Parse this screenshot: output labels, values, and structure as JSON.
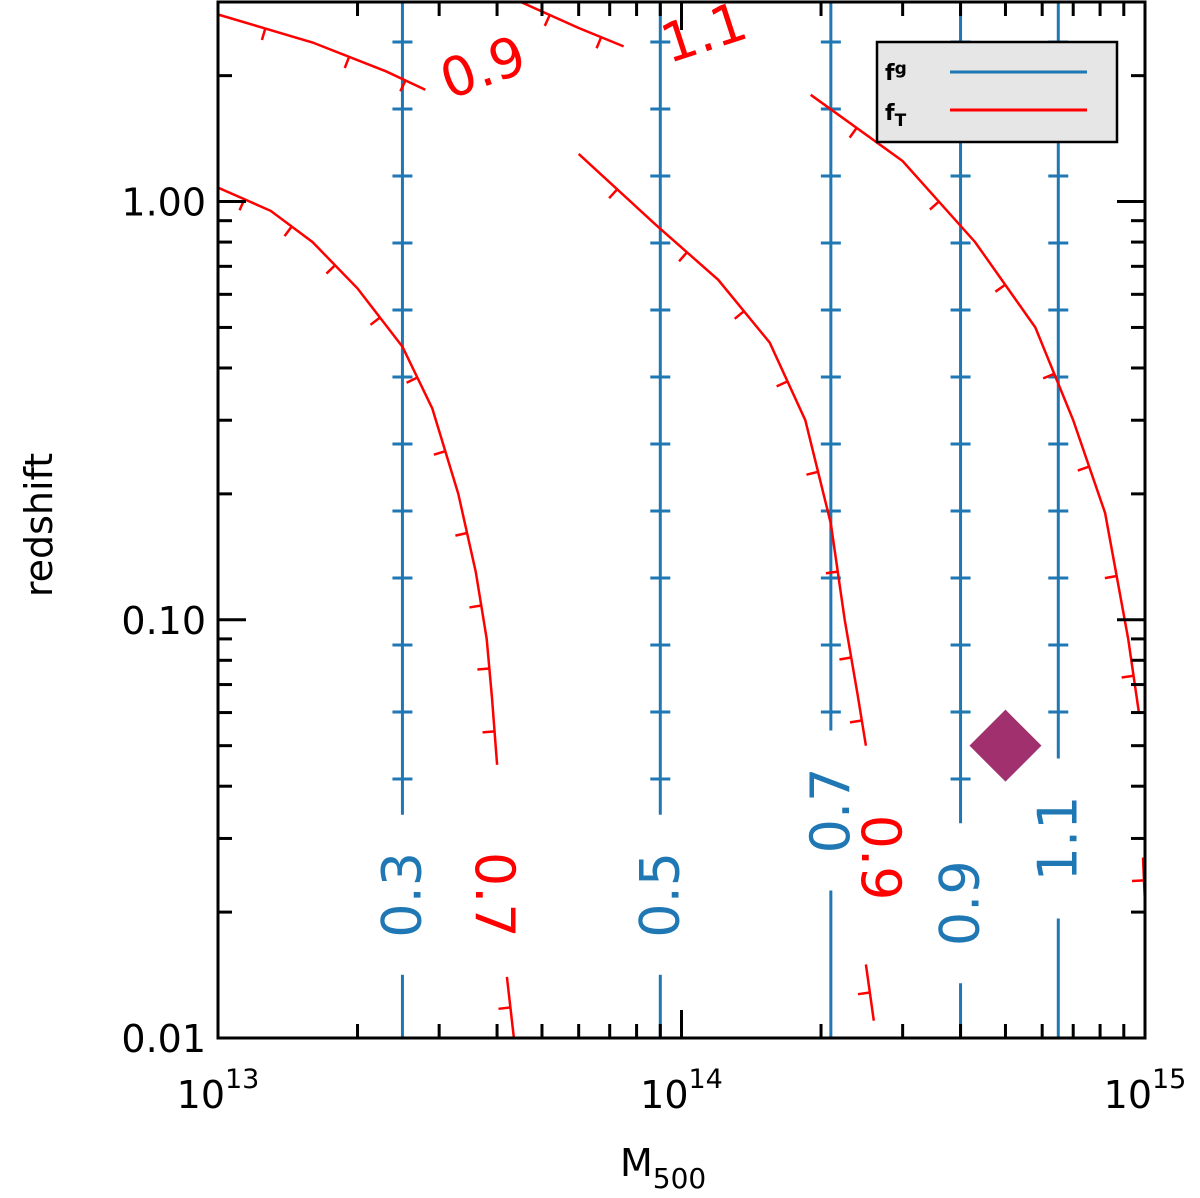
{
  "colors": {
    "fg": "#1f77b4",
    "fT": "#ff0000",
    "marker": "#a0306e",
    "legend_bg": "#e6e6e6"
  },
  "chart_data": {
    "type": "contour",
    "xlabel": "M",
    "xlabel_sub": "500",
    "ylabel": "redshift",
    "x_scale": "log",
    "y_scale": "log",
    "xlim": [
      10000000000000.0,
      1000000000000000.0
    ],
    "ylim": [
      0.01,
      3.0
    ],
    "x_ticks": [
      {
        "value": 10000000000000.0,
        "base": "10",
        "exp": "13"
      },
      {
        "value": 100000000000000.0,
        "base": "10",
        "exp": "14"
      },
      {
        "value": 1000000000000000.0,
        "base": "10",
        "exp": "15"
      }
    ],
    "y_ticks": [
      {
        "value": 0.01,
        "label": "0.01"
      },
      {
        "value": 0.1,
        "label": "0.10"
      },
      {
        "value": 1.0,
        "label": "1.00"
      }
    ],
    "legend": {
      "position": "top-right",
      "entries": [
        {
          "name": "f",
          "sub": "g",
          "color": "#1f77b4"
        },
        {
          "name": "f",
          "sub": "T",
          "color": "#ff0000"
        }
      ]
    },
    "fg_contours": [
      {
        "level": "0.3",
        "mass": 25000000000000.0,
        "label_z": 0.022
      },
      {
        "level": "0.5",
        "mass": 90000000000000.0,
        "label_z": 0.022
      },
      {
        "level": "0.7",
        "mass": 210000000000000.0,
        "label_z": 0.035
      },
      {
        "level": "0.9",
        "mass": 400000000000000.0,
        "label_z": 0.021
      },
      {
        "level": "1.1",
        "mass": 650000000000000.0,
        "label_z": 0.03
      }
    ],
    "fT_contours": [
      {
        "level": "0.7",
        "points": [
          [
            10000000000000.0,
            1.08
          ],
          [
            13000000000000.0,
            0.95
          ],
          [
            16000000000000.0,
            0.8
          ],
          [
            20000000000000.0,
            0.62
          ],
          [
            25000000000000.0,
            0.45
          ],
          [
            29000000000000.0,
            0.32
          ],
          [
            33000000000000.0,
            0.2
          ],
          [
            36000000000000.0,
            0.13
          ],
          [
            38000000000000.0,
            0.09
          ],
          [
            39000000000000.0,
            0.065
          ],
          [
            40000000000000.0,
            0.045
          ]
        ],
        "tail": [
          [
            42000000000000.0,
            0.014
          ],
          [
            43500000000000.0,
            0.01
          ]
        ],
        "label_mass": 36000000000000.0,
        "label_z": 0.022
      },
      {
        "level": "0.9",
        "points": [
          [
            10000000000000.0,
            2.8
          ],
          [
            16000000000000.0,
            2.4
          ],
          [
            23000000000000.0,
            2.05
          ],
          [
            28000000000000.0,
            1.85
          ]
        ],
        "points2": [
          [
            60000000000000.0,
            1.3
          ],
          [
            88000000000000.0,
            0.88
          ],
          [
            120000000000000.0,
            0.65
          ],
          [
            155000000000000.0,
            0.46
          ],
          [
            185000000000000.0,
            0.3
          ],
          [
            210000000000000.0,
            0.17
          ],
          [
            225000000000000.0,
            0.1
          ],
          [
            240000000000000.0,
            0.066
          ],
          [
            250000000000000.0,
            0.05
          ]
        ],
        "tail": [
          [
            250000000000000.0,
            0.015
          ],
          [
            260000000000000.0,
            0.011
          ]
        ],
        "label_mass": 55000000000000.0,
        "label_z": 2.0
      },
      {
        "level": "1.1",
        "points": [
          [
            45000000000000.0,
            3.0
          ],
          [
            60000000000000.0,
            2.6
          ],
          [
            75000000000000.0,
            2.35
          ]
        ],
        "points2": [
          [
            190000000000000.0,
            1.8
          ],
          [
            300000000000000.0,
            1.25
          ],
          [
            430000000000000.0,
            0.8
          ],
          [
            580000000000000.0,
            0.5
          ],
          [
            700000000000000.0,
            0.3
          ],
          [
            820000000000000.0,
            0.18
          ],
          [
            920000000000000.0,
            0.09
          ],
          [
            970000000000000.0,
            0.06
          ]
        ],
        "tail": [
          [
            990000000000000.0,
            0.027
          ],
          [
            1000000000000000.0,
            0.021
          ]
        ],
        "label_mass": 130000000000000.0,
        "label_z": 2.4
      }
    ],
    "fT_inline_labels": [
      {
        "text": "0.7",
        "mass": 36000000000000.0,
        "z": 0.022,
        "rotate": 90
      },
      {
        "text": "0.9",
        "mass": 245000000000000.0,
        "z": 0.027,
        "rotate": 90
      },
      {
        "text": "0.9",
        "mass": 38500000000000.0,
        "z": 1.9,
        "rotate": -20
      },
      {
        "text": "1.1",
        "mass": 115000000000000.0,
        "z": 2.3,
        "rotate": -18
      }
    ],
    "marker": {
      "shape": "diamond",
      "mass": 500000000000000.0,
      "z": 0.05
    }
  }
}
